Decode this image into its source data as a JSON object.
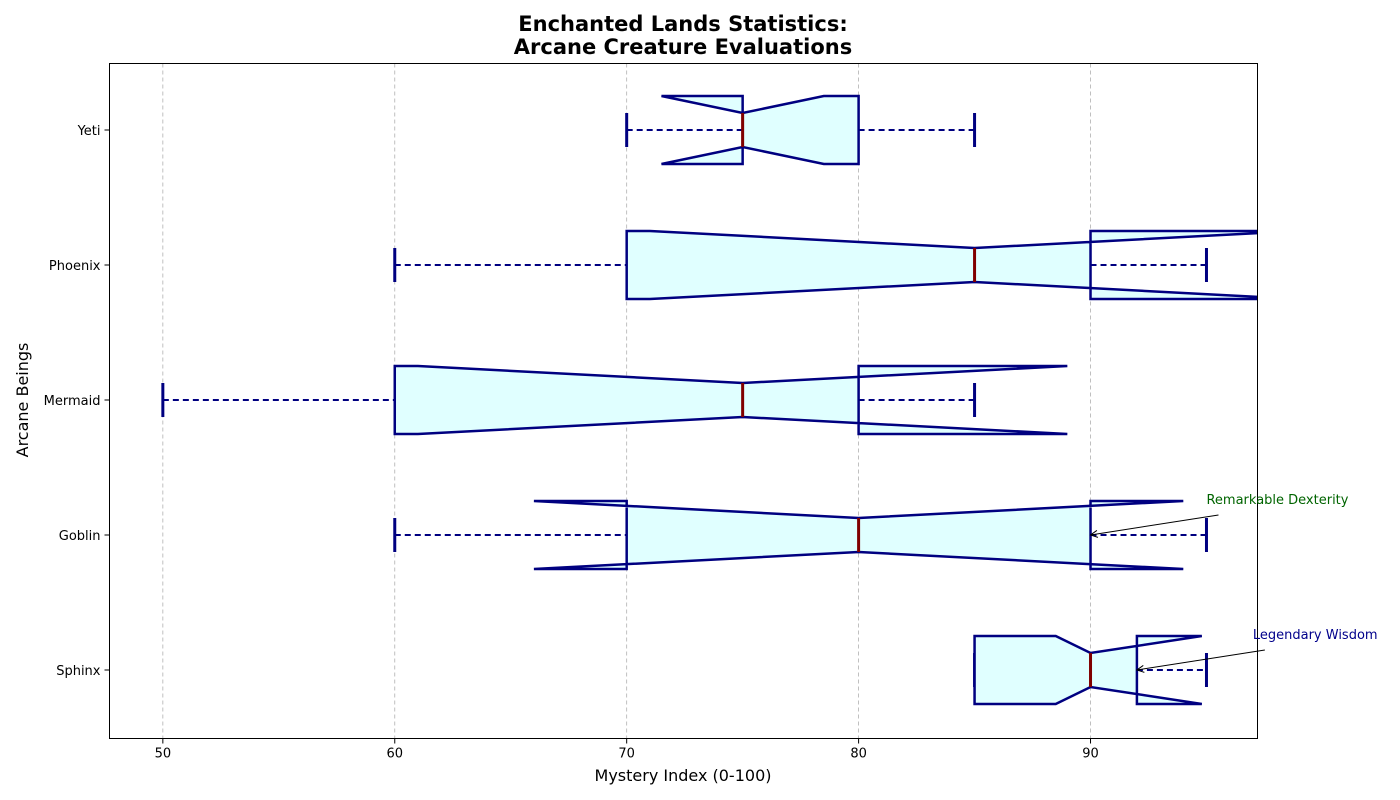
{
  "chart_data": {
    "type": "boxplot",
    "orientation": "horizontal",
    "notched": true,
    "title_lines": [
      "Enchanted Lands Statistics:",
      "Arcane Creature Evaluations"
    ],
    "xlabel": "Mystery Index (0-100)",
    "ylabel": "Arcane Beings",
    "xlim": [
      47.7,
      97.2
    ],
    "xticks": [
      50,
      60,
      70,
      80,
      90
    ],
    "grid": "x-dashed",
    "colors": {
      "box_fill": "#e0ffff",
      "box_edge": "#000080",
      "median": "#800000",
      "annotation_green": "#006400",
      "annotation_blue": "#00008b"
    },
    "categories": [
      "Sphinx",
      "Goblin",
      "Mermaid",
      "Phoenix",
      "Yeti"
    ],
    "boxes": [
      {
        "category": "Sphinx",
        "whislo": 85,
        "q1": 85,
        "med": 90,
        "q3": 92,
        "whishi": 95,
        "notch_lo": 88.5,
        "notch_hi": 94.8
      },
      {
        "category": "Goblin",
        "whislo": 60,
        "q1": 70,
        "med": 80,
        "q3": 90,
        "whishi": 95,
        "notch_lo": 66.0,
        "notch_hi": 94.0
      },
      {
        "category": "Mermaid",
        "whislo": 50,
        "q1": 60,
        "med": 75,
        "q3": 80,
        "whishi": 85,
        "notch_lo": 61.0,
        "notch_hi": 89.0
      },
      {
        "category": "Phoenix",
        "whislo": 60,
        "q1": 70,
        "med": 85,
        "q3": 90,
        "whishi": 95,
        "notch_lo": 71.0,
        "notch_hi": 99.0
      },
      {
        "category": "Yeti",
        "whislo": 70,
        "q1": 75,
        "med": 75,
        "q3": 80,
        "whishi": 85,
        "notch_lo": 71.5,
        "notch_hi": 78.5
      }
    ],
    "annotations": [
      {
        "text": "Remarkable Dexterity",
        "category": "Goblin",
        "point_x": 90,
        "text_x": 95,
        "color": "#006400"
      },
      {
        "text": "Legendary Wisdom",
        "category": "Sphinx",
        "point_x": 92,
        "text_x": 97,
        "color": "#00008b"
      }
    ]
  }
}
